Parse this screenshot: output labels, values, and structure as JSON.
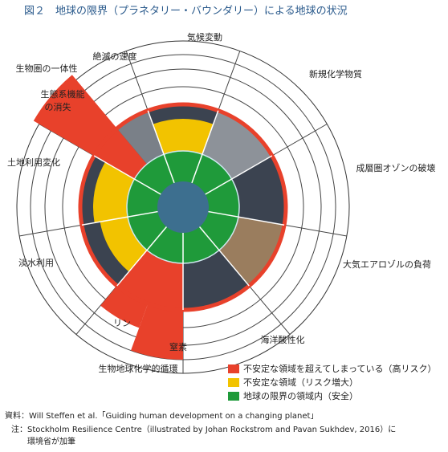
{
  "title": "図２　地球の限界（プラネタリー・バウンダリー）による地球の状況",
  "labels": {
    "climate": "気候変動",
    "novel": "新規化学物質",
    "ozone": "成層圏オゾンの破壊",
    "aerosol": "大気エアロゾルの負荷",
    "ocean": "海洋酸性化",
    "biogeochem": "生物地球化学的循環",
    "nitrogen": "窒素",
    "phosphorus": "リン",
    "freshwater": "淡水利用",
    "landuse": "土地利用変化",
    "biosphere": "生物圏の一体性",
    "extinction": "絶滅の速度",
    "function1": "生態系機能",
    "function2": "の消失"
  },
  "legend": [
    "不安定な領域を超えてしまっている（高リスク）",
    "不安定な領域（リスク増大）",
    "地球の限界の領域内（安全）"
  ],
  "notes": [
    "資料：Will Steffen et al.「Guiding human development on a changing planet」",
    "注：Stockholm Resilience Centre（illustrated by Johan Rockstrom and Pavan Sukhdev, 2016）に",
    "環境省が加筆"
  ]
}
